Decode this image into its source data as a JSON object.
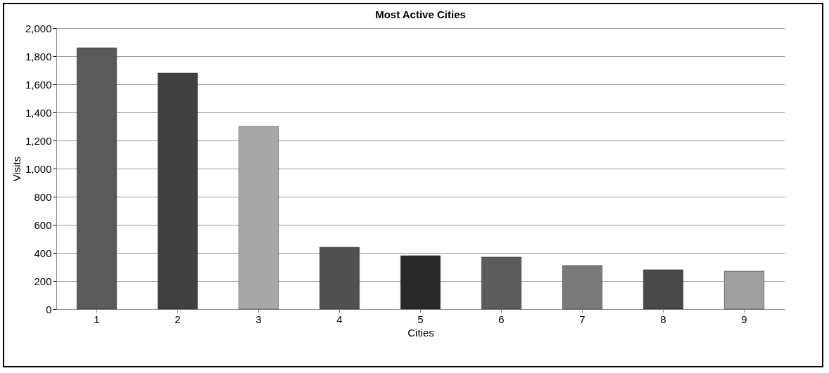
{
  "chart_data": {
    "type": "bar",
    "title": "Most Active Cities",
    "xlabel": "Cities",
    "ylabel": "Visits",
    "categories": [
      "1",
      "2",
      "3",
      "4",
      "5",
      "6",
      "7",
      "8",
      "9"
    ],
    "values": [
      1860,
      1680,
      1300,
      440,
      380,
      370,
      310,
      280,
      270
    ],
    "colors": [
      "#5a5a5a",
      "#404040",
      "#a8a8a8",
      "#505050",
      "#282828",
      "#5c5c5c",
      "#7a7a7a",
      "#484848",
      "#a0a0a0"
    ],
    "ylim": [
      0,
      2000
    ],
    "yticks": [
      0,
      200,
      400,
      600,
      800,
      {
        "value": 1000,
        "label": "1,000"
      },
      {
        "value": 1200,
        "label": "1,200"
      },
      {
        "value": 1400,
        "label": "1,400"
      },
      {
        "value": 1600,
        "label": "1,600"
      },
      {
        "value": 1800,
        "label": "1,800"
      },
      {
        "value": 2000,
        "label": "2,000"
      }
    ],
    "grid": "y"
  }
}
